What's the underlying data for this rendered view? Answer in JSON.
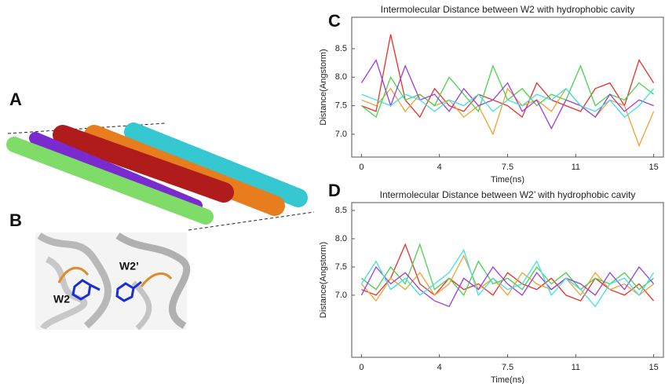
{
  "figure": {
    "panel_labels": [
      "A",
      "B"
    ],
    "structure_labels": [
      "W2",
      "W2’"
    ]
  },
  "chart_data": [
    {
      "type": "line",
      "panel_label": "C",
      "title": "Intermolecular Distance between W2 with hydrophobic cavity",
      "x_label": "Time(ns)",
      "y_label": "Distance(Angstorm)",
      "x": [
        0,
        0.75,
        1.5,
        2.25,
        3,
        3.75,
        4.5,
        5.25,
        6,
        6.75,
        7.5,
        8.25,
        9,
        9.75,
        10.5,
        11.25,
        12,
        12.75,
        13.5,
        14.25,
        15
      ],
      "xlim": [
        -0.5,
        15.5
      ],
      "xticks": [
        0,
        4,
        7.5,
        11,
        15
      ],
      "ylim": [
        6.6,
        9.05
      ],
      "yticks": [
        {
          "value": 7,
          "label": "7.0"
        },
        7.5,
        {
          "value": 8,
          "label": "8.0"
        },
        8.5
      ],
      "series": [
        {
          "color": "#e8312a",
          "values": [
            7.5,
            7.4,
            8.75,
            7.6,
            7.3,
            7.8,
            7.5,
            7.4,
            7.7,
            7.6,
            7.5,
            7.3,
            7.9,
            7.6,
            7.5,
            7.4,
            7.8,
            7.9,
            7.5,
            8.3,
            7.9
          ]
        },
        {
          "color": "#f5a031",
          "values": [
            7.6,
            7.5,
            7.8,
            7.4,
            7.7,
            7.5,
            7.6,
            7.3,
            7.5,
            7.0,
            7.8,
            7.5,
            7.6,
            7.4,
            7.8,
            7.5,
            7.3,
            7.6,
            7.5,
            6.8,
            7.4
          ]
        },
        {
          "color": "#4ad24a",
          "values": [
            7.5,
            7.3,
            8.0,
            7.6,
            7.7,
            7.5,
            8.0,
            7.7,
            7.4,
            8.2,
            7.6,
            7.8,
            7.5,
            7.7,
            7.6,
            8.2,
            7.5,
            7.7,
            7.6,
            7.9,
            7.7
          ]
        },
        {
          "color": "#9b3de0",
          "values": [
            7.9,
            8.3,
            7.5,
            8.2,
            7.6,
            7.7,
            7.4,
            7.8,
            7.5,
            7.6,
            7.9,
            7.4,
            7.6,
            7.1,
            7.6,
            7.5,
            7.3,
            7.7,
            7.4,
            7.6,
            7.5
          ]
        },
        {
          "color": "#3fe0e8",
          "values": [
            7.7,
            7.6,
            7.5,
            7.7,
            7.6,
            7.4,
            7.6,
            7.5,
            7.7,
            7.4,
            7.6,
            7.5,
            7.7,
            7.6,
            7.8,
            7.5,
            7.4,
            7.6,
            7.3,
            7.5,
            7.8
          ]
        }
      ]
    },
    {
      "type": "line",
      "panel_label": "D",
      "title": "Intermolecular Distance between W2’ with hydrophobic cavity",
      "x_label": "Time(ns)",
      "y_label": "Distance(Angstorm)",
      "x": [
        0,
        0.75,
        1.5,
        2.25,
        3,
        3.75,
        4.5,
        5.25,
        6,
        6.75,
        7.5,
        8.25,
        9,
        9.75,
        10.5,
        11.25,
        12,
        12.75,
        13.5,
        14.25,
        15
      ],
      "xlim": [
        -0.5,
        15.5
      ],
      "xticks": [
        0,
        4,
        7.5,
        11,
        15
      ],
      "ylim": [
        5.9,
        8.64
      ],
      "yticks": [
        {
          "value": 7,
          "label": "7.0"
        },
        7.5,
        {
          "value": 8,
          "label": "8.0"
        },
        8.5
      ],
      "series": [
        {
          "color": "#e8312a",
          "values": [
            7.1,
            7.0,
            7.3,
            7.9,
            7.2,
            7.0,
            7.3,
            7.1,
            7.2,
            7.0,
            7.4,
            7.2,
            7.1,
            7.3,
            7.0,
            6.9,
            7.3,
            7.1,
            7.0,
            7.2,
            6.9
          ]
        },
        {
          "color": "#f5a031",
          "values": [
            7.2,
            6.9,
            7.3,
            7.1,
            7.4,
            7.0,
            7.2,
            7.7,
            7.1,
            7.3,
            7.0,
            7.4,
            7.2,
            7.1,
            7.3,
            7.0,
            7.4,
            7.1,
            7.2,
            7.0,
            7.2
          ]
        },
        {
          "color": "#4ad24a",
          "values": [
            7.3,
            7.1,
            7.5,
            7.2,
            7.9,
            7.1,
            7.3,
            7.0,
            7.6,
            7.2,
            7.3,
            7.1,
            7.5,
            7.2,
            7.4,
            7.1,
            7.3,
            7.2,
            7.4,
            7.1,
            7.3
          ]
        },
        {
          "color": "#9b3de0",
          "values": [
            7.0,
            7.5,
            7.2,
            7.4,
            7.1,
            6.9,
            6.8,
            7.3,
            7.1,
            7.5,
            7.2,
            7.0,
            7.4,
            7.1,
            7.3,
            7.2,
            7.0,
            7.4,
            7.1,
            7.5,
            7.2
          ]
        },
        {
          "color": "#3fe0e8",
          "values": [
            7.2,
            7.6,
            7.1,
            7.3,
            7.0,
            7.2,
            7.4,
            7.8,
            7.0,
            7.3,
            7.1,
            7.2,
            7.6,
            7.0,
            7.3,
            7.1,
            6.8,
            7.2,
            7.3,
            7.0,
            7.4
          ]
        }
      ]
    }
  ]
}
